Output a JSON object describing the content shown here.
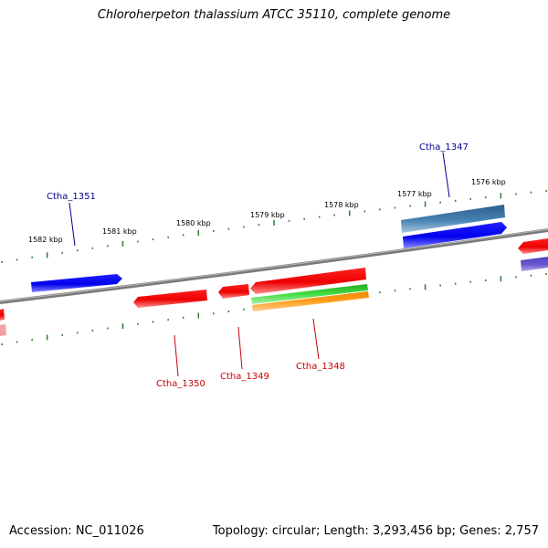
{
  "title": "Chloroherpeton thalassium ATCC 35110, complete genome",
  "accession": "Accession: NC_011026",
  "topology": "Topology: circular; Length: 3,293,456 bp; Genes: 2,757",
  "ticks": [
    "1582 kbp",
    "1581 kbp",
    "1580 kbp",
    "1579 kbp",
    "1578 kbp",
    "1577 kbp",
    "1576 kbp"
  ],
  "genes": {
    "ctha_1351": "Ctha_1351",
    "ctha_1347": "Ctha_1347",
    "ctha_1350": "Ctha_1350",
    "ctha_1349": "Ctha_1349",
    "ctha_1348": "Ctha_1348"
  },
  "colors": {
    "backbone": "#808080",
    "tick": "#2e7d32",
    "forward_gene": "#0000ff",
    "forward_gene_alt": "#4682b4",
    "reverse_gene": "#ff0000",
    "rna_green": "#33cc33",
    "rna_orange": "#ff9900",
    "purple_gene": "#6a5acd",
    "label_forward": "#00008b",
    "label_reverse": "#cc0000"
  }
}
